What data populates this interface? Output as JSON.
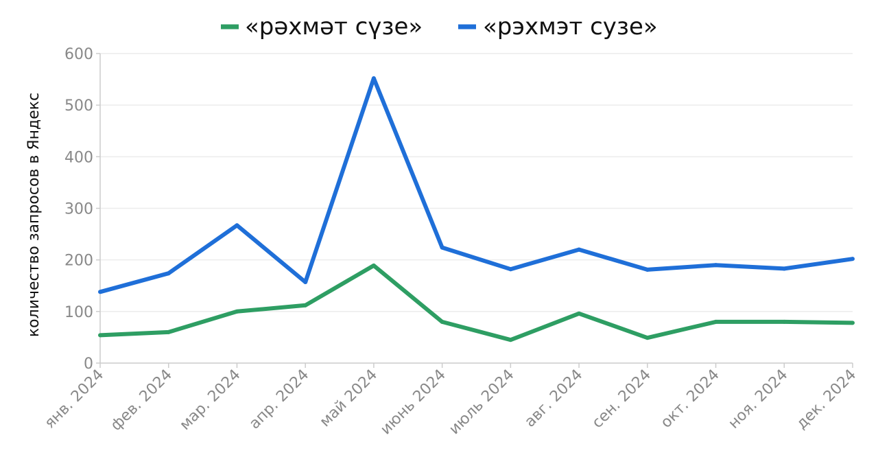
{
  "chart_data": {
    "type": "line",
    "title": "",
    "xlabel": "",
    "ylabel": "количество запросов в Яндекс",
    "ylim": [
      0,
      600
    ],
    "yticks": [
      0,
      100,
      200,
      300,
      400,
      500,
      600
    ],
    "grid": true,
    "legend_position": "top-center",
    "categories": [
      "янв. 2024",
      "фев. 2024",
      "мар. 2024",
      "апр. 2024",
      "май 2024",
      "июнь 2024",
      "июль 2024",
      "авг. 2024",
      "сен. 2024",
      "окт. 2024",
      "ноя. 2024",
      "дек. 2024"
    ],
    "series": [
      {
        "name": "«рәхмәт сүзе»",
        "color": "#2e9e63",
        "values": [
          54,
          60,
          100,
          112,
          189,
          80,
          45,
          96,
          49,
          80,
          80,
          78
        ]
      },
      {
        "name": "«рэхмэт сузе»",
        "color": "#1f6fd8",
        "values": [
          138,
          174,
          267,
          157,
          552,
          224,
          182,
          220,
          181,
          190,
          183,
          202
        ]
      }
    ]
  }
}
